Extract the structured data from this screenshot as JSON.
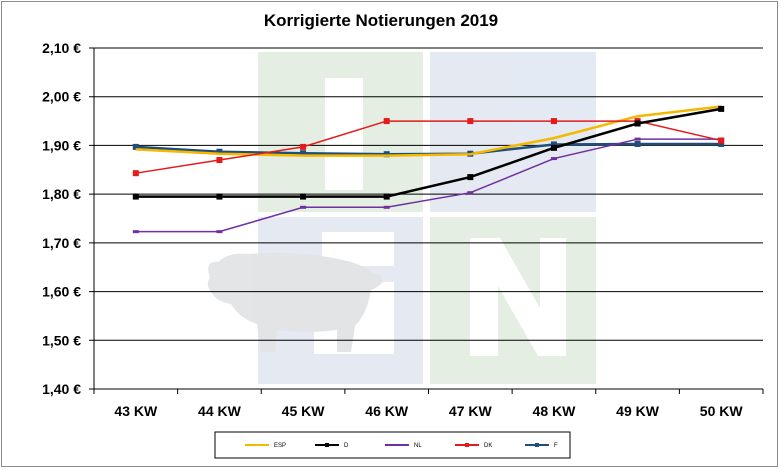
{
  "chart_data": {
    "type": "line",
    "title": "Korrigierte Notierungen 2019",
    "categories": [
      "43 KW",
      "44 KW",
      "45 KW",
      "46 KW",
      "47 KW",
      "48 KW",
      "49 KW",
      "50 KW"
    ],
    "y_ticks": [
      "2,10 €",
      "2,00 €",
      "1,90 €",
      "1,80 €",
      "1,70 €",
      "1,60 €",
      "1,50 €",
      "1,40 €"
    ],
    "ylim": [
      1.4,
      2.1
    ],
    "grid": true,
    "legend_position": "bottom",
    "series": [
      {
        "name": "ESP",
        "color": "#f5b800",
        "marker": "none",
        "values": [
          1.892,
          1.883,
          1.879,
          1.879,
          1.882,
          1.915,
          1.96,
          1.98
        ]
      },
      {
        "name": "D",
        "color": "#000000",
        "marker": "square",
        "values": [
          1.795,
          1.795,
          1.795,
          1.795,
          1.835,
          1.895,
          1.945,
          1.975
        ]
      },
      {
        "name": "NL",
        "color": "#7030a0",
        "marker": "dash",
        "values": [
          1.723,
          1.723,
          1.773,
          1.773,
          1.803,
          1.873,
          1.913,
          1.913
        ]
      },
      {
        "name": "DK",
        "color": "#e41a1c",
        "marker": "square",
        "values": [
          1.843,
          1.87,
          1.897,
          1.95,
          1.95,
          1.95,
          1.95,
          1.91
        ]
      },
      {
        "name": "F",
        "color": "#1f4e79",
        "marker": "square",
        "values": [
          1.897,
          1.887,
          1.884,
          1.882,
          1.883,
          1.902,
          1.903,
          1.903
        ]
      }
    ]
  }
}
